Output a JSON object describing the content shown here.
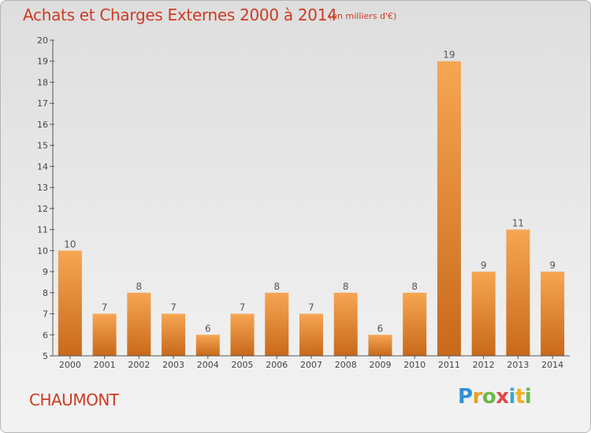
{
  "chart_data": {
    "type": "bar",
    "title": "Achats et Charges Externes 2000 à 2014",
    "unit_label": "(en milliers d'€)",
    "categories": [
      "2000",
      "2001",
      "2002",
      "2003",
      "2004",
      "2005",
      "2006",
      "2007",
      "2008",
      "2009",
      "2010",
      "2011",
      "2012",
      "2013",
      "2014"
    ],
    "values": [
      10,
      7,
      8,
      7,
      6,
      7,
      8,
      7,
      8,
      6,
      8,
      19,
      9,
      11,
      9
    ],
    "ylim": [
      5,
      20
    ],
    "yticks": [
      5,
      6,
      7,
      8,
      9,
      10,
      11,
      12,
      13,
      14,
      15,
      16,
      17,
      18,
      19,
      20
    ],
    "xlabel": "",
    "ylabel": "",
    "grid": false,
    "bar_color_top": "#f6a653",
    "bar_color_bottom": "#c8691a"
  },
  "footer": {
    "town": "CHAUMONT",
    "logo_letters": [
      "P",
      "r",
      "o",
      "x",
      "i",
      "t",
      "i"
    ]
  }
}
